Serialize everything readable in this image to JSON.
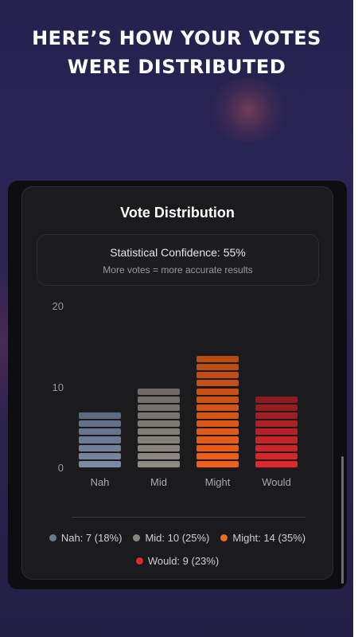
{
  "header": {
    "line1": "HERE’S HOW YOUR VOTES",
    "line2": "WERE DISTRIBUTED"
  },
  "card": {
    "title": "Vote Distribution",
    "confidence": {
      "title": "Statistical Confidence: 55%",
      "subtitle": "More votes = more accurate results"
    }
  },
  "chart_data": {
    "type": "bar",
    "title": "",
    "categories": [
      "Nah",
      "Mid",
      "Might",
      "Would"
    ],
    "values": [
      7,
      10,
      14,
      9
    ],
    "ylim": [
      0,
      20
    ],
    "yticks": [
      "0",
      "10",
      "20"
    ],
    "grid": false,
    "colors": [
      {
        "top": "#5d6b82",
        "bottom": "#7a8aa3"
      },
      {
        "top": "#6f6a65",
        "bottom": "#8f8a83"
      },
      {
        "top": "#b84a12",
        "bottom": "#f25f16"
      },
      {
        "top": "#8e1b1f",
        "bottom": "#e0272b"
      }
    ]
  },
  "legend": {
    "items": [
      {
        "label": "Nah: 7 (18%)",
        "color": "#6b7890"
      },
      {
        "label": "Mid: 10 (25%)",
        "color": "#8a857f"
      },
      {
        "label": "Might: 14 (35%)",
        "color": "#f06a1e"
      },
      {
        "label": "Would: 9 (23%)",
        "color": "#e0272b"
      }
    ]
  }
}
